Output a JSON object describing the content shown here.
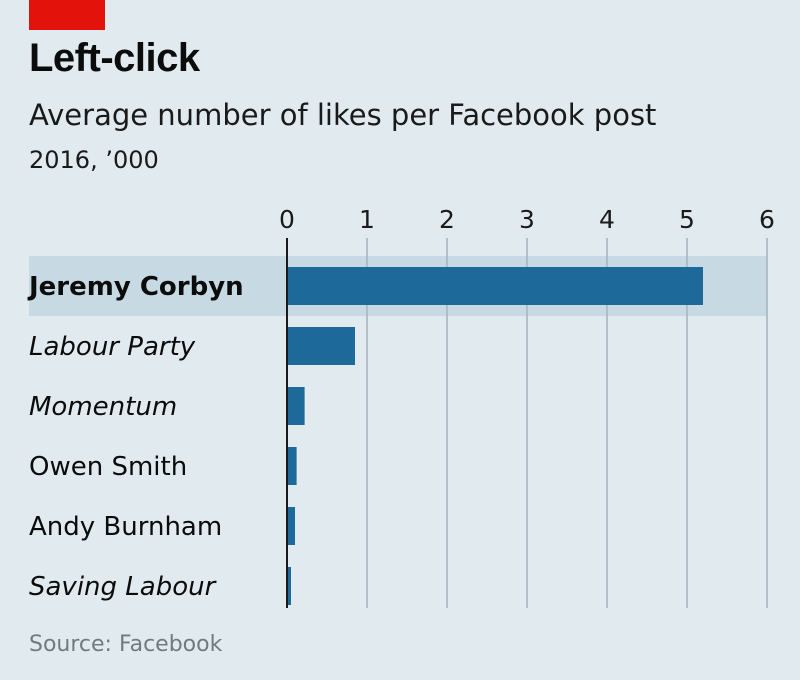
{
  "header": {
    "title": "Left-click",
    "subtitle": "Average number of likes per Facebook post",
    "unit": "2016, ’000"
  },
  "footer": {
    "source": "Source: Facebook"
  },
  "colors": {
    "background": "#e0eaef",
    "bar": "#1d6a9a",
    "highlight": "#c7d9e3",
    "gridline": "#a9b6bd",
    "accent": "#e3120b"
  },
  "chart_data": {
    "type": "bar",
    "orientation": "horizontal",
    "title": "Left-click",
    "subtitle": "Average number of likes per Facebook post",
    "unit": "2016, ’000",
    "categories": [
      "Jeremy Corbyn",
      "Labour Party",
      "Momentum",
      "Owen Smith",
      "Andy Burnham",
      "Saving Labour"
    ],
    "values": [
      5.2,
      0.85,
      0.22,
      0.12,
      0.1,
      0.05
    ],
    "highlighted": "Jeremy Corbyn",
    "bold_categories": [
      "Jeremy Corbyn"
    ],
    "italic_categories": [
      "Labour Party",
      "Momentum",
      "Saving Labour"
    ],
    "xlim": [
      0,
      6
    ],
    "xticks": [
      "0",
      "1",
      "2",
      "3",
      "4",
      "5",
      "6"
    ],
    "axis_position": "top",
    "grid": true,
    "source": "Source: Facebook"
  }
}
